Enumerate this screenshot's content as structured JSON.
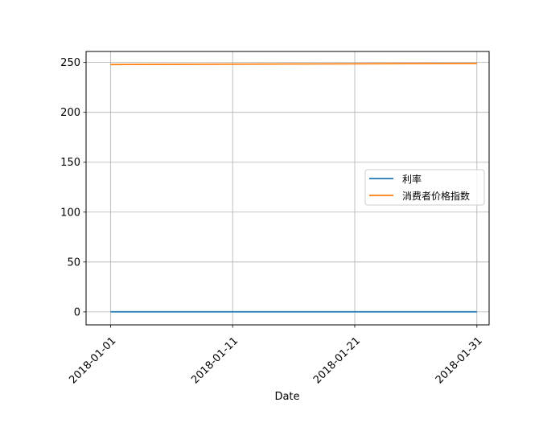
{
  "chart_data": {
    "type": "line",
    "xlabel": "Date",
    "ylabel": "",
    "title": "",
    "grid": true,
    "legend_position": "center-right",
    "x": [
      "2018-01-01",
      "2018-01-31"
    ],
    "x_ticks": [
      "2018-01-01",
      "2018-01-11",
      "2018-01-21",
      "2018-01-31"
    ],
    "y_ticks": [
      0,
      50,
      100,
      150,
      200,
      250
    ],
    "xlim": [
      "2017-12-30",
      "2018-02-01"
    ],
    "ylim": [
      -13,
      261
    ],
    "series": [
      {
        "name": "利率",
        "color": "#1f77b4",
        "values": [
          0.1,
          0.1
        ]
      },
      {
        "name": "消费者价格指数",
        "color": "#ff7f0e",
        "values": [
          247.9,
          249.0
        ]
      }
    ]
  }
}
